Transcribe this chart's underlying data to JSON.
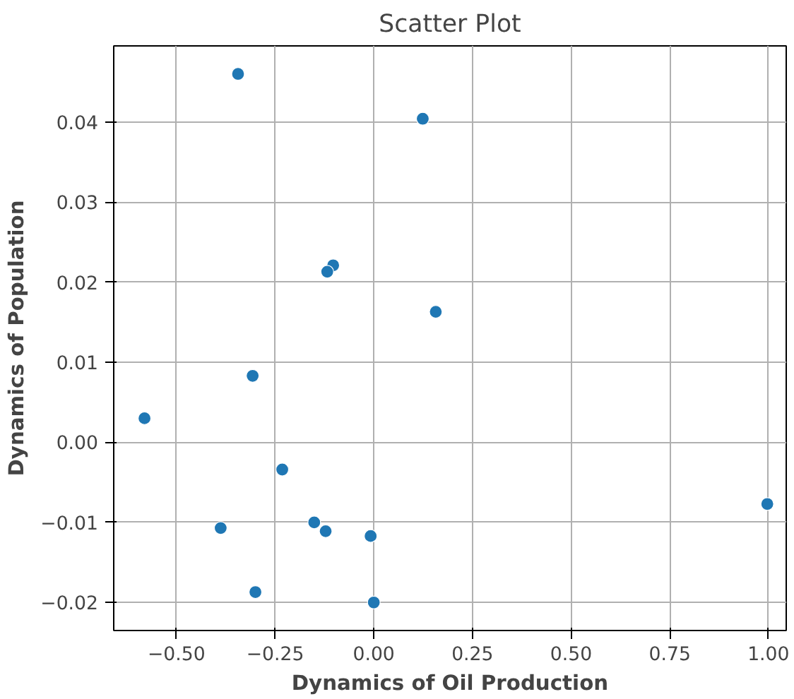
{
  "chart_data": {
    "type": "scatter",
    "title": "Scatter Plot",
    "xlabel": "Dynamics of Oil Production",
    "ylabel": "Dynamics of Population",
    "x": [
      -0.344,
      0.124,
      -0.103,
      -0.118,
      0.157,
      -0.307,
      -0.581,
      -0.232,
      -0.388,
      -0.151,
      -0.122,
      -0.008,
      0.997,
      -0.3,
      0.0
    ],
    "series": [
      {
        "color": "#1f77b4",
        "values": [
          0.046,
          0.0404,
          0.0221,
          0.0213,
          0.0163,
          0.0083,
          0.003,
          -0.0034,
          -0.0107,
          -0.01,
          -0.0111,
          -0.0117,
          -0.0077,
          -0.0187,
          -0.02
        ]
      }
    ],
    "xlim": [
      -0.659,
      1.045
    ],
    "ylim": [
      -0.0235,
      0.0495
    ],
    "xticks": [
      {
        "value": -0.5,
        "label": "−0.50"
      },
      {
        "value": -0.25,
        "label": "−0.25"
      },
      {
        "value": 0,
        "label": "0.00"
      },
      {
        "value": 0.25,
        "label": "0.25"
      },
      {
        "value": 0.5,
        "label": "0.50"
      },
      {
        "value": 0.75,
        "label": "0.75"
      },
      {
        "value": 1,
        "label": "1.00"
      }
    ],
    "yticks": [
      {
        "value": -0.02,
        "label": "−0.02"
      },
      {
        "value": -0.01,
        "label": "−0.01"
      },
      {
        "value": 0,
        "label": "0.00"
      },
      {
        "value": 0.01,
        "label": "0.01"
      },
      {
        "value": 0.02,
        "label": "0.02"
      },
      {
        "value": 0.03,
        "label": "0.03"
      },
      {
        "value": 0.04,
        "label": "0.04"
      }
    ],
    "grid": true,
    "marker": "circle"
  }
}
